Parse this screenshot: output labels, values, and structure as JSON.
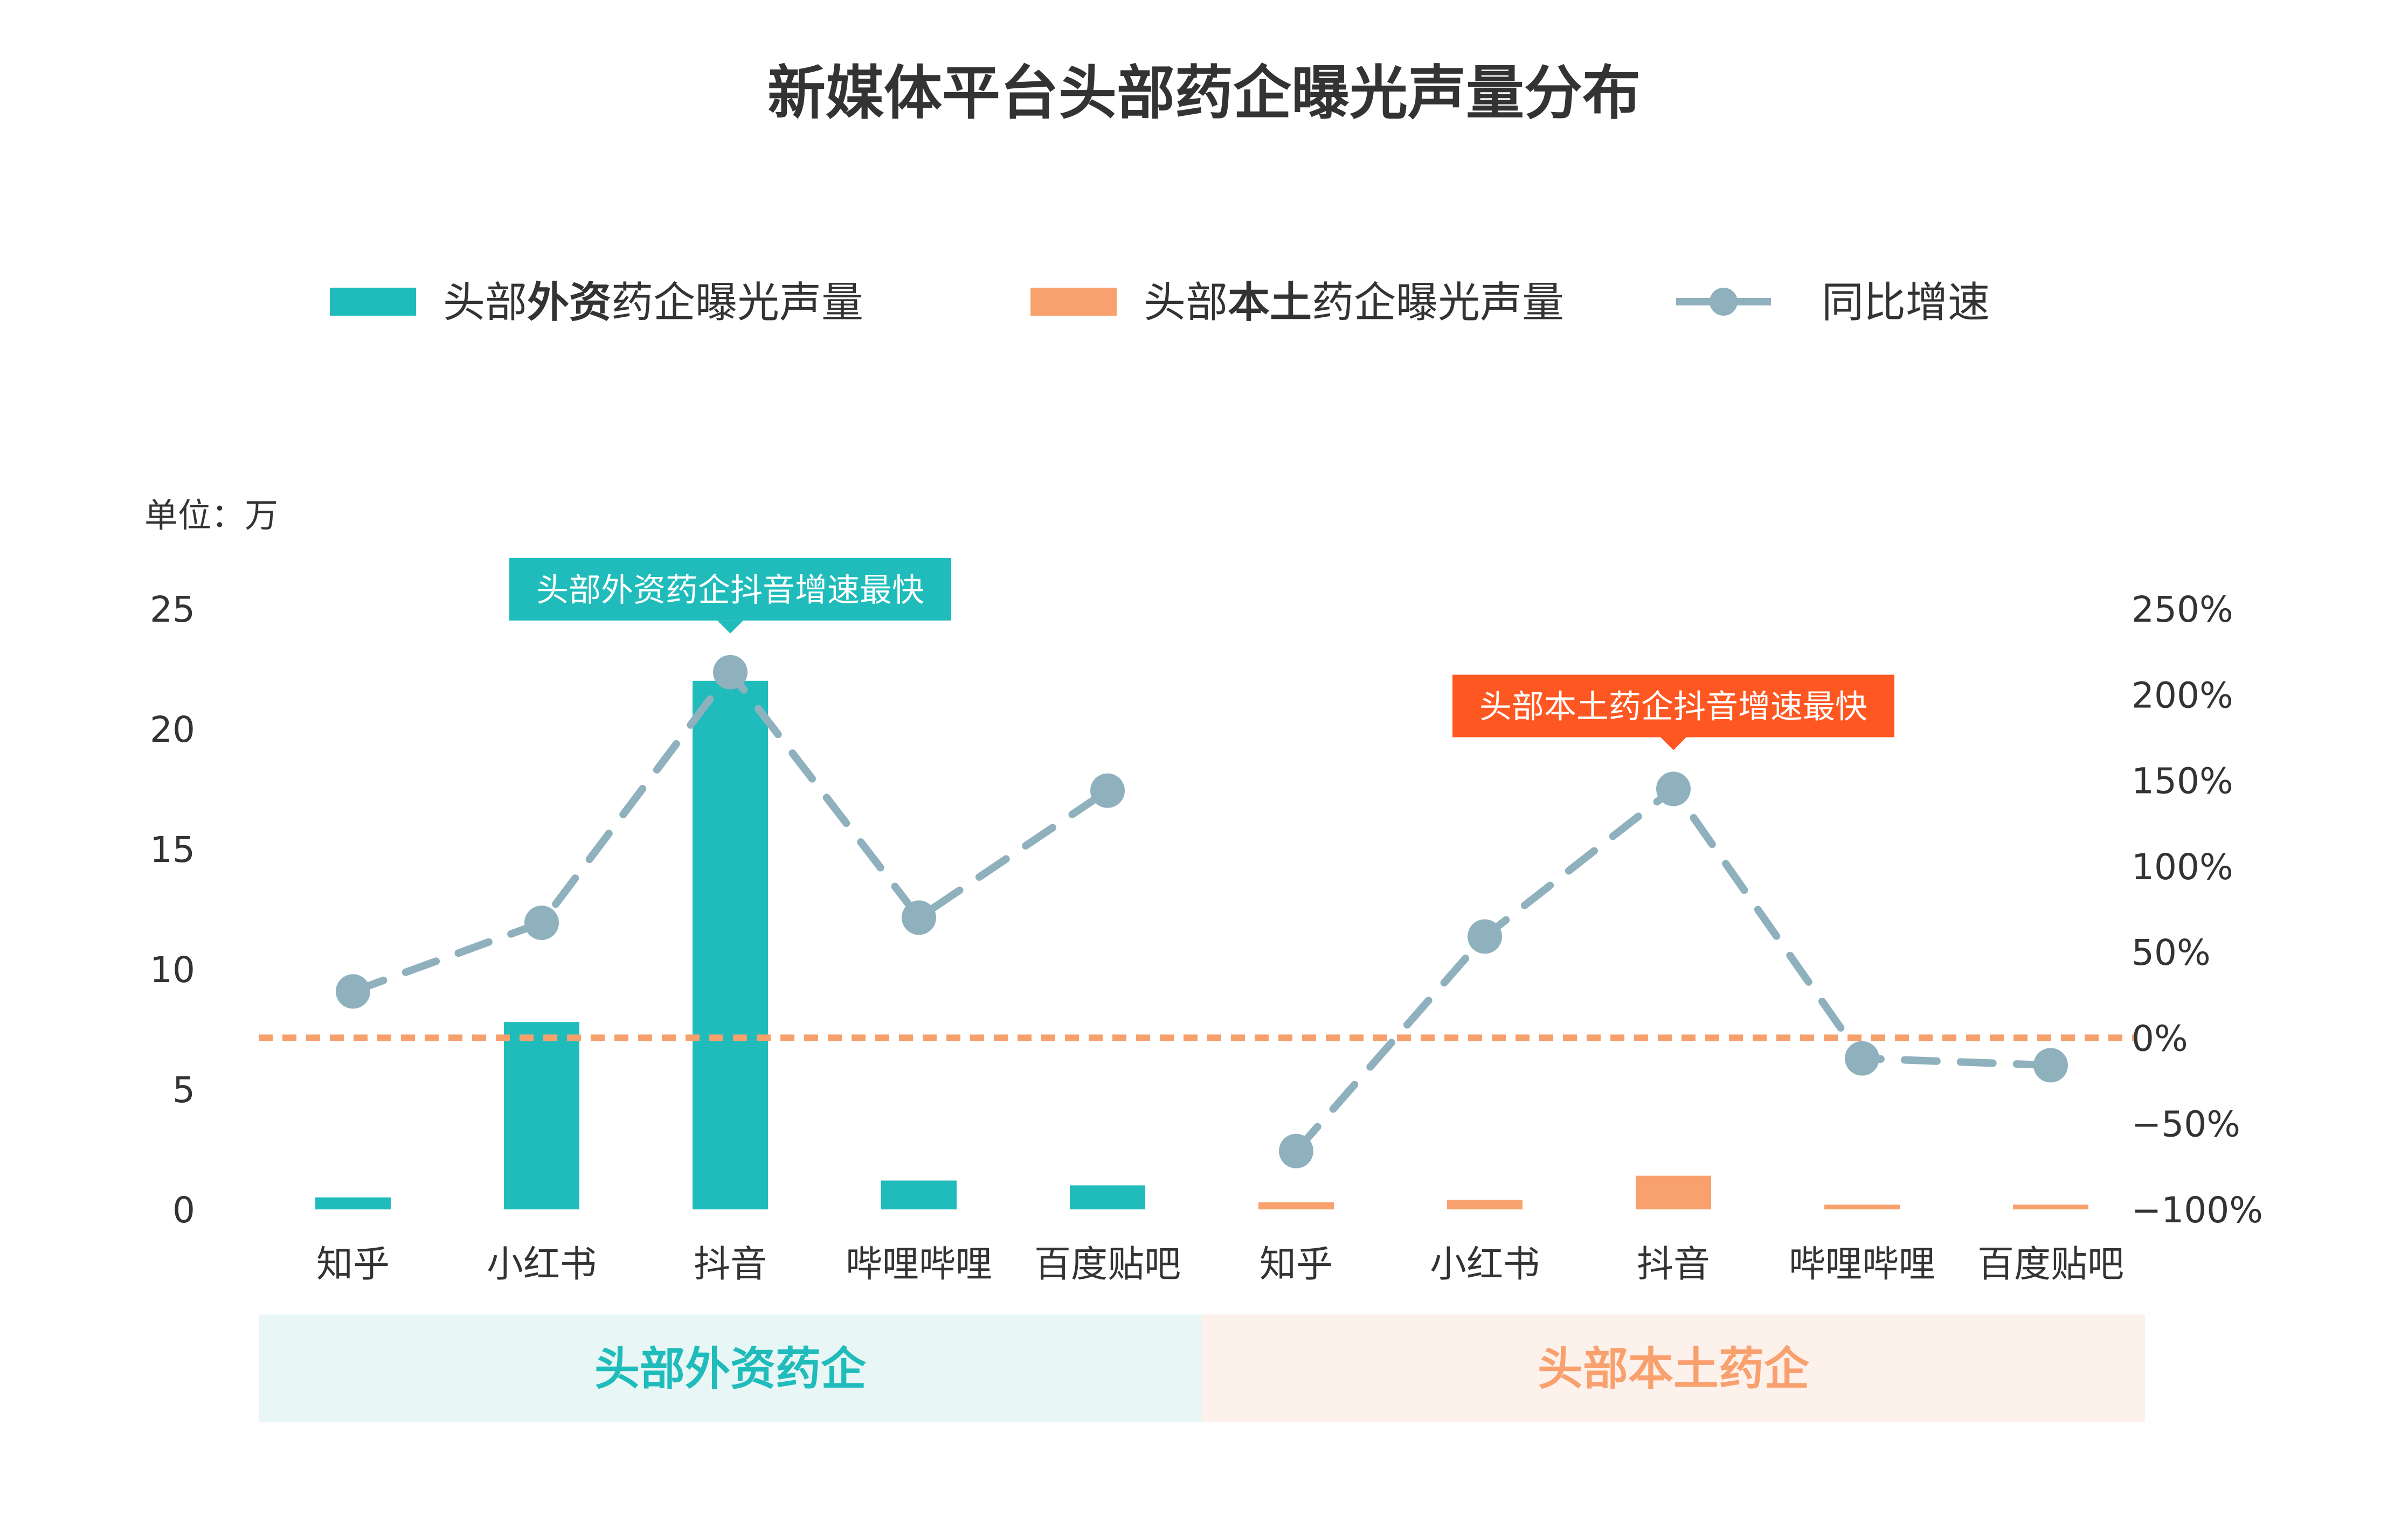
{
  "chart_data": {
    "type": "bar",
    "title": "新媒体平台头部药企曝光声量分布",
    "unit_label": "单位：万",
    "legend": [
      {
        "pre": "头部",
        "bold": "外资",
        "post": "药企曝光声量",
        "kind": "bar",
        "color": "#1fbcbb"
      },
      {
        "pre": "头部",
        "bold": "本土",
        "post": "药企曝光声量",
        "kind": "bar",
        "color": "#f9a16e"
      },
      {
        "pre": "",
        "bold": "",
        "post": "同比增速",
        "kind": "line",
        "color": "#8fb0bd"
      }
    ],
    "y_left": {
      "min": 0,
      "max": 25,
      "ticks": [
        "0",
        "5",
        "10",
        "15",
        "20",
        "25"
      ]
    },
    "y_right": {
      "min": -100,
      "max": 250,
      "ticks": [
        "−100%",
        "−50%",
        "0%",
        "50%",
        "100%",
        "150%",
        "200%",
        "250%"
      ]
    },
    "groups": [
      {
        "name": "头部外资药企",
        "color": "#1fbcbb",
        "band_color": "#e8f6f5",
        "label_color": "#1fbcbb",
        "categories": [
          "知乎",
          "小红书",
          "抖音",
          "哔哩哔哩",
          "百度贴吧"
        ],
        "values": [
          0.5,
          7.8,
          22.0,
          1.2,
          1.0
        ],
        "growth": [
          27,
          67,
          213,
          70,
          144
        ],
        "callout": {
          "text": "头部外资药企抖音增速最快",
          "index": 2,
          "color": "#1fbcbb"
        }
      },
      {
        "name": "头部本土药企",
        "color": "#f9a16e",
        "band_color": "#fdf1ec",
        "label_color": "#f9a16e",
        "categories": [
          "知乎",
          "小红书",
          "抖音",
          "哔哩哔哩",
          "百度贴吧"
        ],
        "values": [
          0.3,
          0.4,
          1.4,
          0.2,
          0.2
        ],
        "growth": [
          -66,
          59,
          145,
          -12,
          -16
        ],
        "callout": {
          "text": "头部本土药企抖音增速最快",
          "index": 2,
          "color": "#ff5722"
        }
      }
    ],
    "zero_line_color": "#f6a06c",
    "growth_line_color": "#8fb0bd",
    "grid": false
  }
}
